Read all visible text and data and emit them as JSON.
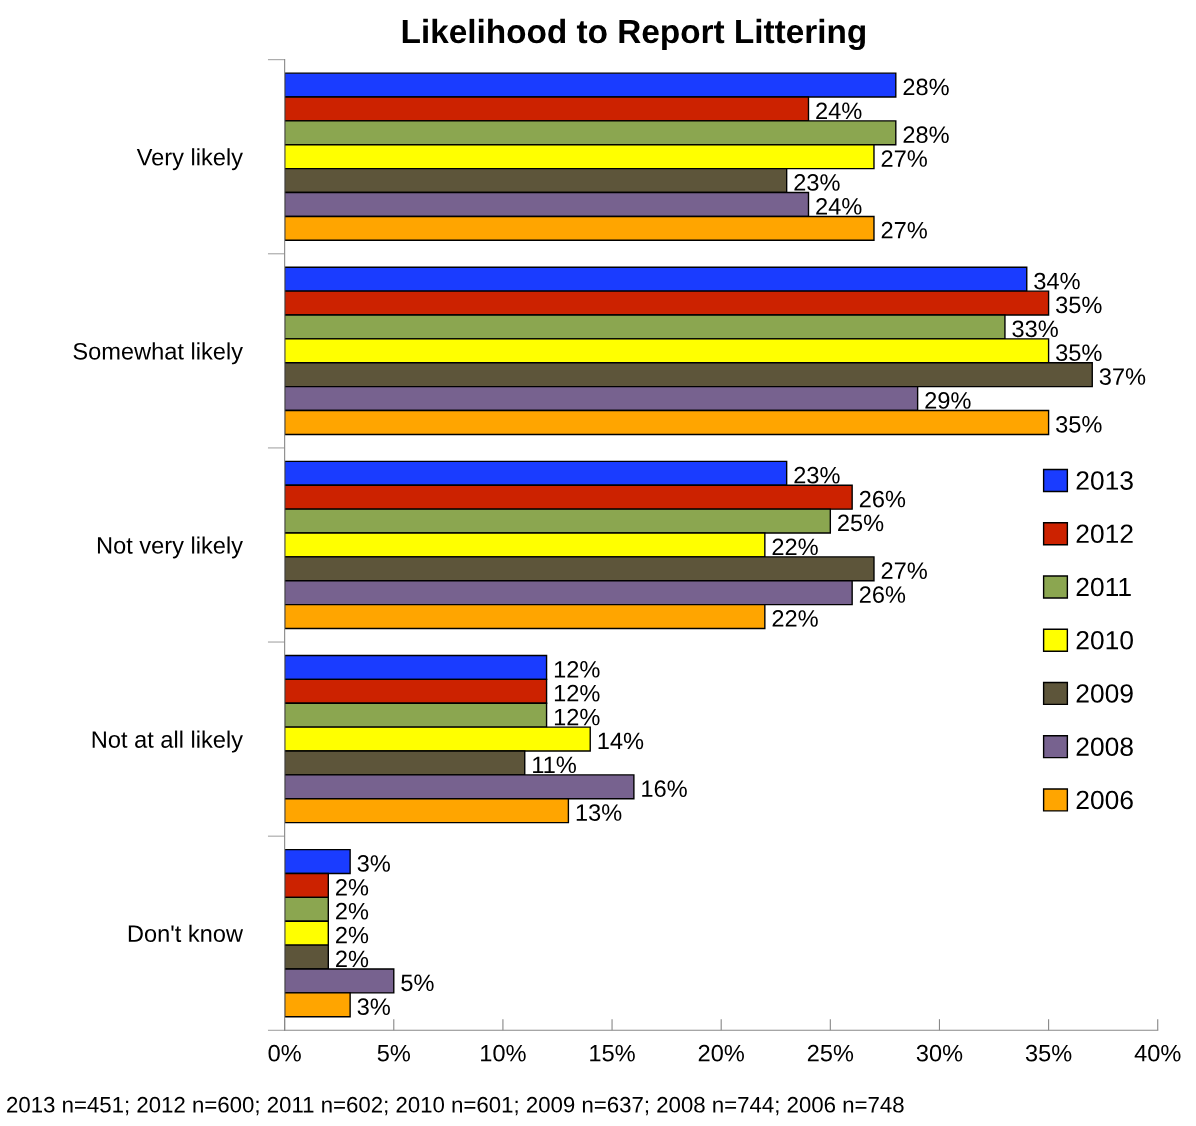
{
  "chart_data": {
    "type": "bar",
    "orientation": "horizontal",
    "title": "Likelihood to Report Littering",
    "categories": [
      "Very likely",
      "Somewhat likely",
      "Not very likely",
      "Not at all likely",
      "Don't know"
    ],
    "series": [
      {
        "name": "2013",
        "color": "#1a3cff",
        "values": [
          28,
          34,
          23,
          12,
          3
        ],
        "value_labels": [
          "28%",
          "34%",
          "23%",
          "12%",
          "3%"
        ]
      },
      {
        "name": "2012",
        "color": "#cc2200",
        "values": [
          24,
          35,
          26,
          12,
          2
        ],
        "value_labels": [
          "24%",
          "35%",
          "26%",
          "12%",
          "2%"
        ]
      },
      {
        "name": "2011",
        "color": "#8ba650",
        "values": [
          28,
          33,
          25,
          12,
          2
        ],
        "value_labels": [
          "28%",
          "33%",
          "25%",
          "12%",
          "2%"
        ]
      },
      {
        "name": "2010",
        "color": "#ffff00",
        "values": [
          27,
          35,
          22,
          14,
          2
        ],
        "value_labels": [
          "27%",
          "35%",
          "22%",
          "14%",
          "2%"
        ]
      },
      {
        "name": "2009",
        "color": "#5d553a",
        "values": [
          23,
          37,
          27,
          11,
          2
        ],
        "value_labels": [
          "23%",
          "37%",
          "27%",
          "11%",
          "2%"
        ]
      },
      {
        "name": "2008",
        "color": "#77628f",
        "values": [
          24,
          29,
          26,
          16,
          5
        ],
        "value_labels": [
          "24%",
          "29%",
          "26%",
          "16%",
          "5%"
        ]
      },
      {
        "name": "2006",
        "color": "#ffa500",
        "values": [
          27,
          35,
          22,
          13,
          3
        ],
        "value_labels": [
          "27%",
          "35%",
          "22%",
          "13%",
          "3%"
        ]
      }
    ],
    "xlim": [
      0,
      40
    ],
    "xticks": [
      {
        "value": 0,
        "label": "0%"
      },
      {
        "value": 5,
        "label": "5%"
      },
      {
        "value": 10,
        "label": "10%"
      },
      {
        "value": 15,
        "label": "15%"
      },
      {
        "value": 20,
        "label": "20%"
      },
      {
        "value": 25,
        "label": "25%"
      },
      {
        "value": 30,
        "label": "30%"
      },
      {
        "value": 35,
        "label": "35%"
      },
      {
        "value": 40,
        "label": "40%"
      }
    ],
    "grid": false,
    "legend": "right",
    "annotations": [
      "2013 n=451; 2012 n=600; 2011 n=602; 2010 n=601; 2009 n=637; 2008 n=744; 2006 n=748"
    ]
  }
}
